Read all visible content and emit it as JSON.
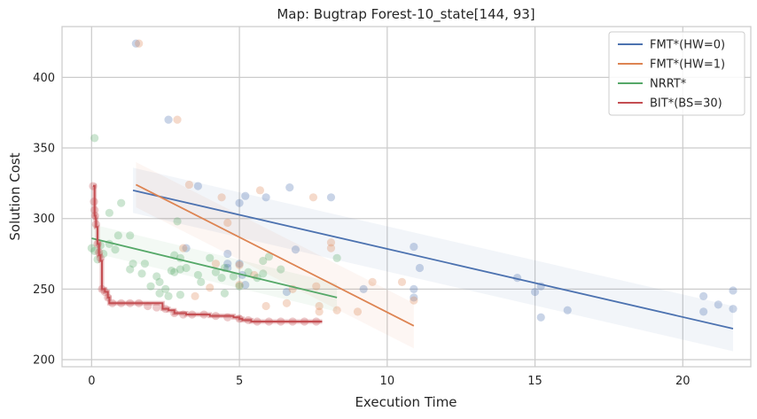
{
  "chart_data": {
    "type": "line",
    "title": "Map: Bugtrap Forest-10_state[144, 93]",
    "xlabel": "Execution Time",
    "ylabel": "Solution Cost",
    "xlim": [
      -1.0,
      22.3
    ],
    "ylim": [
      195,
      436
    ],
    "xticks": [
      0,
      5,
      10,
      15,
      20
    ],
    "yticks": [
      200,
      250,
      300,
      350,
      400
    ],
    "grid": true,
    "legend_position": "top-right",
    "series": [
      {
        "name": "FMT*(HW=0)",
        "color": "#4c72b0",
        "line": [
          [
            1.4,
            320
          ],
          [
            21.7,
            222
          ]
        ],
        "band": {
          "upper": [
            [
              1.4,
              336
            ],
            [
              21.7,
              238
            ]
          ],
          "lower": [
            [
              1.4,
              304
            ],
            [
              21.7,
              206
            ]
          ]
        },
        "points": [
          [
            1.5,
            424
          ],
          [
            2.6,
            370
          ],
          [
            3.6,
            323
          ],
          [
            3.2,
            279
          ],
          [
            5.0,
            311
          ],
          [
            5.2,
            316
          ],
          [
            5.9,
            315
          ],
          [
            6.7,
            322
          ],
          [
            6.9,
            278
          ],
          [
            8.1,
            315
          ],
          [
            4.6,
            275
          ],
          [
            4.6,
            268
          ],
          [
            5.0,
            268
          ],
          [
            4.6,
            265
          ],
          [
            5.1,
            260
          ],
          [
            5.2,
            253
          ],
          [
            6.6,
            248
          ],
          [
            9.2,
            250
          ],
          [
            10.9,
            280
          ],
          [
            11.1,
            265
          ],
          [
            10.9,
            250
          ],
          [
            10.9,
            244
          ],
          [
            14.4,
            258
          ],
          [
            15.0,
            248
          ],
          [
            15.2,
            252
          ],
          [
            15.2,
            230
          ],
          [
            16.1,
            235
          ],
          [
            20.7,
            245
          ],
          [
            20.7,
            234
          ],
          [
            21.2,
            239
          ],
          [
            21.7,
            249
          ],
          [
            21.7,
            236
          ]
        ]
      },
      {
        "name": "FMT*(HW=1)",
        "color": "#dd8452",
        "line": [
          [
            1.5,
            324
          ],
          [
            10.9,
            224
          ]
        ],
        "band": {
          "upper": [
            [
              1.5,
              340
            ],
            [
              10.9,
              240
            ]
          ],
          "lower": [
            [
              1.5,
              308
            ],
            [
              10.9,
              208
            ]
          ]
        },
        "points": [
          [
            1.6,
            424
          ],
          [
            2.9,
            370
          ],
          [
            3.3,
            324
          ],
          [
            4.4,
            315
          ],
          [
            5.7,
            320
          ],
          [
            7.5,
            315
          ],
          [
            4.6,
            297
          ],
          [
            3.1,
            279
          ],
          [
            8.1,
            283
          ],
          [
            8.1,
            279
          ],
          [
            5.0,
            267
          ],
          [
            4.2,
            268
          ],
          [
            5.5,
            260
          ],
          [
            4.0,
            251
          ],
          [
            5.0,
            253
          ],
          [
            7.6,
            252
          ],
          [
            7.7,
            238
          ],
          [
            7.7,
            234
          ],
          [
            9.5,
            255
          ],
          [
            10.5,
            255
          ],
          [
            10.9,
            242
          ],
          [
            3.5,
            245
          ],
          [
            5.9,
            238
          ],
          [
            6.6,
            240
          ],
          [
            8.3,
            235
          ],
          [
            9.0,
            234
          ],
          [
            6.8,
            250
          ]
        ]
      },
      {
        "name": "NRRT*",
        "color": "#55a868",
        "line": [
          [
            0.0,
            286
          ],
          [
            8.3,
            244
          ]
        ],
        "band": {
          "upper": [
            [
              0.0,
              296
            ],
            [
              8.3,
              254
            ]
          ],
          "lower": [
            [
              0.0,
              276
            ],
            [
              8.3,
              234
            ]
          ]
        },
        "points": [
          [
            0.1,
            357
          ],
          [
            0.6,
            304
          ],
          [
            1.0,
            311
          ],
          [
            0.9,
            288
          ],
          [
            1.3,
            288
          ],
          [
            0.0,
            279
          ],
          [
            0.1,
            277
          ],
          [
            0.3,
            281
          ],
          [
            0.2,
            271
          ],
          [
            0.4,
            275
          ],
          [
            0.6,
            282
          ],
          [
            0.8,
            278
          ],
          [
            1.4,
            268
          ],
          [
            1.8,
            268
          ],
          [
            1.7,
            261
          ],
          [
            2.0,
            252
          ],
          [
            2.2,
            259
          ],
          [
            2.3,
            255
          ],
          [
            2.5,
            250
          ],
          [
            2.6,
            245
          ],
          [
            2.7,
            263
          ],
          [
            2.8,
            274
          ],
          [
            3.0,
            272
          ],
          [
            2.9,
            298
          ],
          [
            3.0,
            264
          ],
          [
            2.8,
            262
          ],
          [
            3.2,
            265
          ],
          [
            3.7,
            255
          ],
          [
            3.6,
            260
          ],
          [
            4.0,
            272
          ],
          [
            4.2,
            262
          ],
          [
            4.5,
            265
          ],
          [
            4.8,
            259
          ],
          [
            4.5,
            247
          ],
          [
            5.0,
            252
          ],
          [
            5.3,
            262
          ],
          [
            5.6,
            258
          ],
          [
            5.8,
            261
          ],
          [
            5.8,
            270
          ],
          [
            6.0,
            273
          ],
          [
            6.4,
            264
          ],
          [
            8.3,
            272
          ],
          [
            3.0,
            246
          ],
          [
            2.3,
            247
          ],
          [
            4.4,
            258
          ],
          [
            1.3,
            264
          ]
        ]
      },
      {
        "name": "BIT*(BS=30)",
        "color": "#c44e52",
        "steps": [
          [
            0.05,
            323
          ],
          [
            0.1,
            302
          ],
          [
            0.13,
            300
          ],
          [
            0.15,
            294
          ],
          [
            0.2,
            282
          ],
          [
            0.25,
            274
          ],
          [
            0.3,
            270
          ],
          [
            0.35,
            250
          ],
          [
            0.45,
            248
          ],
          [
            0.55,
            244
          ],
          [
            0.6,
            240
          ],
          [
            2.4,
            236
          ],
          [
            2.6,
            235
          ],
          [
            2.8,
            233
          ],
          [
            3.2,
            232
          ],
          [
            4.0,
            231
          ],
          [
            4.8,
            230
          ],
          [
            5.0,
            229
          ],
          [
            5.1,
            228
          ],
          [
            5.4,
            227
          ],
          [
            7.8,
            227
          ]
        ],
        "points": [
          [
            0.05,
            323
          ],
          [
            0.08,
            312
          ],
          [
            0.1,
            306
          ],
          [
            0.12,
            302
          ],
          [
            0.15,
            296
          ],
          [
            0.2,
            282
          ],
          [
            0.25,
            276
          ],
          [
            0.3,
            272
          ],
          [
            0.35,
            250
          ],
          [
            0.45,
            248
          ],
          [
            0.55,
            244
          ],
          [
            0.7,
            240
          ],
          [
            1.0,
            240
          ],
          [
            1.3,
            240
          ],
          [
            1.6,
            240
          ],
          [
            1.9,
            238
          ],
          [
            2.2,
            237
          ],
          [
            2.5,
            236
          ],
          [
            2.8,
            233
          ],
          [
            3.1,
            232
          ],
          [
            3.4,
            232
          ],
          [
            3.8,
            232
          ],
          [
            4.2,
            231
          ],
          [
            4.6,
            230
          ],
          [
            5.0,
            229
          ],
          [
            5.3,
            228
          ],
          [
            5.6,
            227
          ],
          [
            6.0,
            227
          ],
          [
            6.4,
            227
          ],
          [
            6.8,
            227
          ],
          [
            7.2,
            227
          ],
          [
            7.6,
            227
          ]
        ]
      }
    ]
  }
}
